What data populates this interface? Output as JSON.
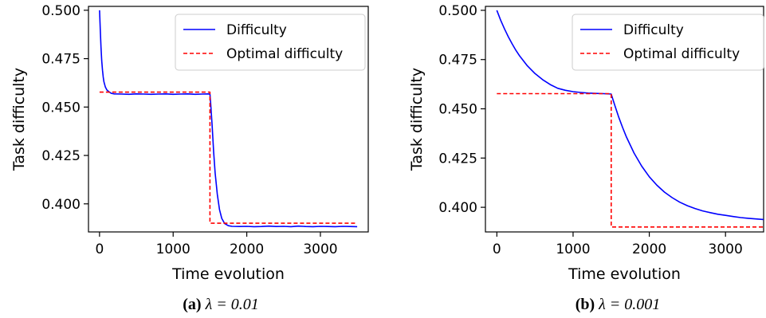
{
  "figure": {
    "panels": [
      {
        "caption_prefix": "(a)",
        "caption_math": "λ = 0.01"
      },
      {
        "caption_prefix": "(b)",
        "caption_math": "λ = 0.001"
      }
    ]
  },
  "chart_data": [
    {
      "type": "line",
      "xlabel": "Time evolution",
      "ylabel": "Task difficulty",
      "xlim": [
        -150,
        3650
      ],
      "ylim": [
        0.3855,
        0.502
      ],
      "xticks": [
        0,
        1000,
        2000,
        3000
      ],
      "xtick_labels": [
        "0",
        "1000",
        "2000",
        "3000"
      ],
      "yticks": [
        0.4,
        0.425,
        0.45,
        0.475,
        0.5
      ],
      "ytick_labels": [
        "0.400",
        "0.425",
        "0.450",
        "0.475",
        "0.500"
      ],
      "legend_position": "upper-right",
      "series": [
        {
          "name": "Difficulty",
          "color": "#0000ff",
          "style": "solid",
          "x": [
            0,
            10,
            20,
            30,
            40,
            50,
            60,
            80,
            100,
            130,
            160,
            200,
            300,
            400,
            500,
            600,
            700,
            800,
            900,
            1000,
            1100,
            1200,
            1300,
            1400,
            1480,
            1500,
            1510,
            1530,
            1550,
            1570,
            1600,
            1630,
            1660,
            1700,
            1750,
            1800,
            1900,
            2000,
            2100,
            2200,
            2300,
            2400,
            2500,
            2600,
            2700,
            2800,
            2900,
            3000,
            3100,
            3200,
            3300,
            3400,
            3500
          ],
          "y": [
            0.5,
            0.49,
            0.481,
            0.474,
            0.469,
            0.4655,
            0.463,
            0.4603,
            0.4588,
            0.4578,
            0.4571,
            0.4568,
            0.4567,
            0.4566,
            0.4568,
            0.4567,
            0.4566,
            0.4567,
            0.4568,
            0.4566,
            0.4567,
            0.4568,
            0.4566,
            0.4567,
            0.4568,
            0.4567,
            0.452,
            0.44,
            0.427,
            0.416,
            0.405,
            0.397,
            0.3925,
            0.3898,
            0.3887,
            0.3884,
            0.3883,
            0.3884,
            0.3882,
            0.3883,
            0.3885,
            0.3883,
            0.3884,
            0.3882,
            0.3885,
            0.3883,
            0.3882,
            0.3884,
            0.3883,
            0.3882,
            0.3884,
            0.3883,
            0.3882
          ]
        },
        {
          "name": "Optimal difficulty",
          "color": "#ff0000",
          "style": "dashed",
          "x": [
            0,
            1500,
            1500,
            3500
          ],
          "y": [
            0.4577,
            0.4577,
            0.39,
            0.39
          ]
        }
      ]
    },
    {
      "type": "line",
      "xlabel": "Time evolution",
      "ylabel": "Task difficulty",
      "xlim": [
        -150,
        3500
      ],
      "ylim": [
        0.3875,
        0.502
      ],
      "xticks": [
        0,
        1000,
        2000,
        3000
      ],
      "xtick_labels": [
        "0",
        "1000",
        "2000",
        "3000"
      ],
      "yticks": [
        0.4,
        0.425,
        0.45,
        0.475,
        0.5
      ],
      "ytick_labels": [
        "0.400",
        "0.425",
        "0.450",
        "0.475",
        "0.500"
      ],
      "legend_position": "upper-right",
      "series": [
        {
          "name": "Difficulty",
          "color": "#0000ff",
          "style": "solid",
          "x": [
            0,
            50,
            100,
            150,
            200,
            250,
            300,
            400,
            500,
            600,
            700,
            800,
            900,
            1000,
            1100,
            1200,
            1300,
            1400,
            1500,
            1550,
            1600,
            1650,
            1700,
            1800,
            1900,
            2000,
            2100,
            2200,
            2300,
            2400,
            2500,
            2600,
            2700,
            2800,
            2900,
            3000,
            3100,
            3200,
            3300,
            3400,
            3500
          ],
          "y": [
            0.5,
            0.495,
            0.4906,
            0.4866,
            0.483,
            0.4797,
            0.4768,
            0.4718,
            0.4679,
            0.4648,
            0.4623,
            0.4604,
            0.4594,
            0.4587,
            0.4583,
            0.458,
            0.4578,
            0.4577,
            0.4575,
            0.4515,
            0.4457,
            0.4405,
            0.4357,
            0.4275,
            0.4209,
            0.4155,
            0.4112,
            0.4077,
            0.4049,
            0.4026,
            0.4008,
            0.3994,
            0.3982,
            0.3973,
            0.3965,
            0.3959,
            0.3953,
            0.3948,
            0.3944,
            0.3941,
            0.3938
          ]
        },
        {
          "name": "Optimal difficulty",
          "color": "#ff0000",
          "style": "dashed",
          "x": [
            0,
            1500,
            1500,
            3500
          ],
          "y": [
            0.4577,
            0.4577,
            0.39,
            0.39
          ]
        }
      ]
    }
  ]
}
